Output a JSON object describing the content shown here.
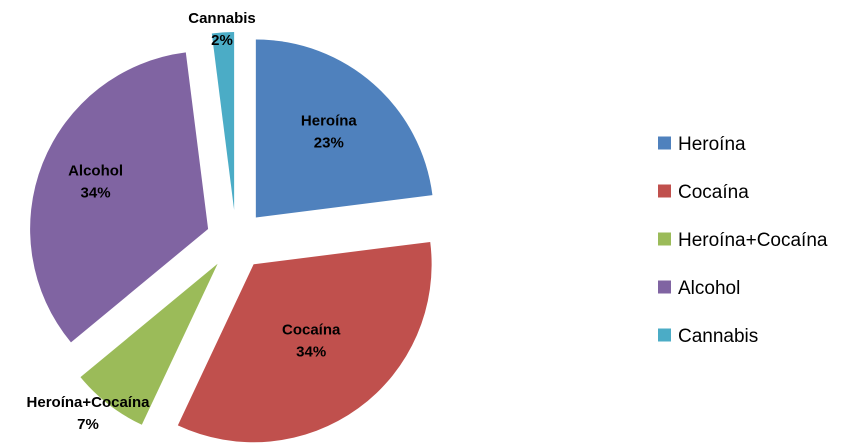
{
  "chart_data": {
    "type": "pie",
    "exploded": true,
    "legend_position": "right",
    "slices": [
      {
        "label": "Heroína",
        "value": 23,
        "value_label": "23%",
        "color": "#4F81BD"
      },
      {
        "label": "Cocaína",
        "value": 34,
        "value_label": "34%",
        "color": "#C0504D"
      },
      {
        "label": "Heroína+Cocaína",
        "value": 7,
        "value_label": "7%",
        "color": "#9BBB59"
      },
      {
        "label": "Alcohol",
        "value": 34,
        "value_label": "34%",
        "color": "#8064A2"
      },
      {
        "label": "Cannabis",
        "value": 2,
        "value_label": "2%",
        "color": "#4BACC6"
      }
    ]
  }
}
